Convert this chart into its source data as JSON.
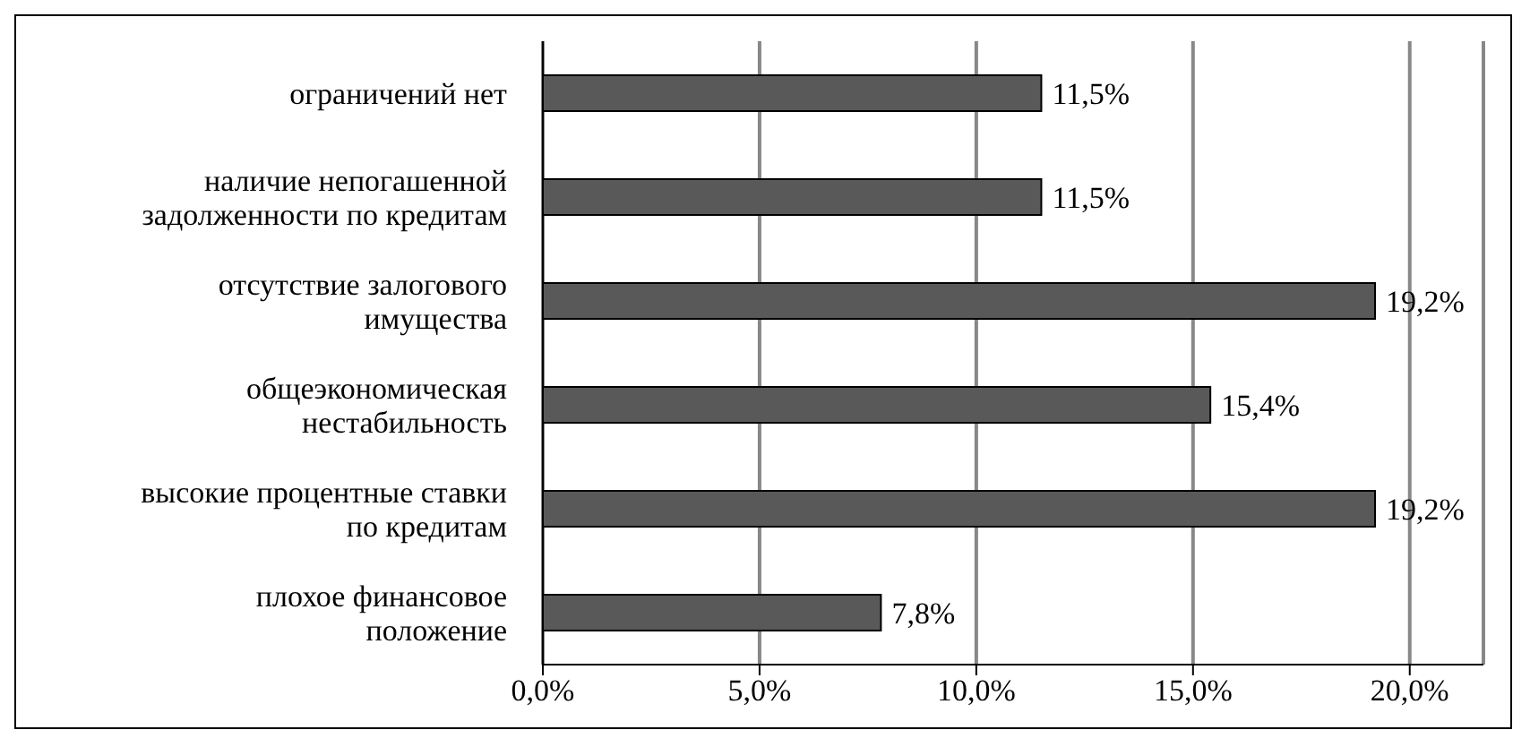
{
  "chart_data": {
    "type": "bar",
    "orientation": "horizontal",
    "categories": [
      "ограничений нет",
      "наличие непогашенной задолженности по кредитам",
      "отсутствие залогового имущества",
      "общеэкономическая нестабильность",
      "высокие процентные ставки по кредитам",
      "плохое финансовое положение"
    ],
    "values": [
      11.5,
      11.5,
      19.2,
      15.4,
      19.2,
      7.8
    ],
    "value_labels": [
      "11,5%",
      "11,5%",
      "19,2%",
      "15,4%",
      "19,2%",
      "7,8%"
    ],
    "color": "#595959",
    "xlim": [
      0,
      21.7
    ],
    "xticks": [
      {
        "value": 0,
        "label": "0,0%"
      },
      {
        "value": 5,
        "label": "5,0%"
      },
      {
        "value": 10,
        "label": "10,0%"
      },
      {
        "value": 15,
        "label": "15,0%"
      },
      {
        "value": 20,
        "label": "20,0%"
      }
    ],
    "grid": "x",
    "legend": false
  }
}
